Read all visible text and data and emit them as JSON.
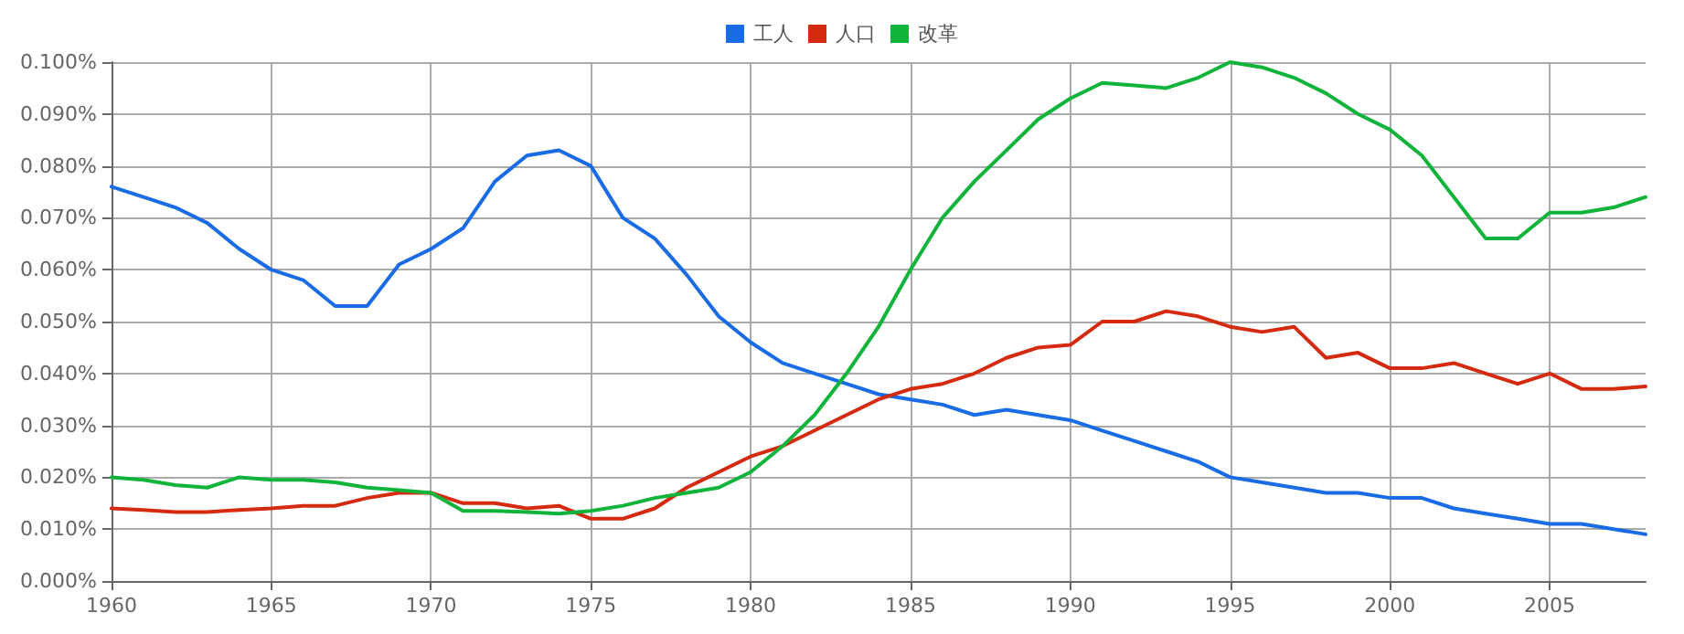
{
  "chart_data": {
    "type": "line",
    "legend": "top",
    "grid": true,
    "marker": "none",
    "line_style": "solid",
    "x": [
      1960,
      1961,
      1962,
      1963,
      1964,
      1965,
      1966,
      1967,
      1968,
      1969,
      1970,
      1971,
      1972,
      1973,
      1974,
      1975,
      1976,
      1977,
      1978,
      1979,
      1980,
      1981,
      1982,
      1983,
      1984,
      1985,
      1986,
      1987,
      1988,
      1989,
      1990,
      1991,
      1992,
      1993,
      1994,
      1995,
      1996,
      1997,
      1998,
      1999,
      2000,
      2001,
      2002,
      2003,
      2004,
      2005,
      2006,
      2007,
      2008
    ],
    "xlim": [
      1960,
      2008
    ],
    "xticks": [
      1960,
      1965,
      1970,
      1975,
      1980,
      1985,
      1990,
      1995,
      2000,
      2005
    ],
    "ylim": [
      0,
      0.1
    ],
    "yticks": [
      {
        "value": 0,
        "label": "0.000%"
      },
      {
        "value": 0.01,
        "label": "0.010%"
      },
      {
        "value": 0.02,
        "label": "0.020%"
      },
      {
        "value": 0.03,
        "label": "0.030%"
      },
      {
        "value": 0.04,
        "label": "0.040%"
      },
      {
        "value": 0.05,
        "label": "0.050%"
      },
      {
        "value": 0.06,
        "label": "0.060%"
      },
      {
        "value": 0.07,
        "label": "0.070%"
      },
      {
        "value": 0.08,
        "label": "0.080%"
      },
      {
        "value": 0.09,
        "label": "0.090%"
      },
      {
        "value": 0.1,
        "label": "0.100%"
      }
    ],
    "series": [
      {
        "name": "工人",
        "color": "#1a6be6",
        "values": [
          0.076,
          0.074,
          0.072,
          0.069,
          0.064,
          0.06,
          0.058,
          0.053,
          0.053,
          0.061,
          0.064,
          0.068,
          0.077,
          0.082,
          0.083,
          0.08,
          0.07,
          0.066,
          0.059,
          0.051,
          0.046,
          0.042,
          0.04,
          0.038,
          0.036,
          0.035,
          0.034,
          0.032,
          0.033,
          0.032,
          0.031,
          0.029,
          0.027,
          0.025,
          0.023,
          0.02,
          0.019,
          0.018,
          0.017,
          0.017,
          0.016,
          0.016,
          0.014,
          0.013,
          0.012,
          0.011,
          0.011,
          0.01,
          0.009
        ]
      },
      {
        "name": "人口",
        "color": "#d42a10",
        "values": [
          0.014,
          0.0137,
          0.0133,
          0.0133,
          0.0137,
          0.014,
          0.0145,
          0.0145,
          0.016,
          0.017,
          0.017,
          0.015,
          0.015,
          0.014,
          0.0145,
          0.012,
          0.012,
          0.014,
          0.018,
          0.021,
          0.024,
          0.026,
          0.029,
          0.032,
          0.035,
          0.037,
          0.038,
          0.04,
          0.043,
          0.045,
          0.0455,
          0.05,
          0.05,
          0.052,
          0.051,
          0.049,
          0.048,
          0.049,
          0.043,
          0.044,
          0.041,
          0.041,
          0.042,
          0.04,
          0.038,
          0.04,
          0.037,
          0.037,
          0.0375
        ]
      },
      {
        "name": "改革",
        "color": "#10b43a",
        "values": [
          0.02,
          0.0195,
          0.0185,
          0.018,
          0.02,
          0.0195,
          0.0195,
          0.019,
          0.018,
          0.0175,
          0.017,
          0.0135,
          0.0135,
          0.0133,
          0.013,
          0.0135,
          0.0145,
          0.016,
          0.017,
          0.018,
          0.021,
          0.026,
          0.032,
          0.04,
          0.049,
          0.06,
          0.07,
          0.077,
          0.083,
          0.089,
          0.093,
          0.096,
          0.0955,
          0.095,
          0.097,
          0.1,
          0.099,
          0.097,
          0.094,
          0.09,
          0.087,
          0.082,
          0.074,
          0.066,
          0.066,
          0.071,
          0.071,
          0.072,
          0.074
        ]
      }
    ]
  }
}
